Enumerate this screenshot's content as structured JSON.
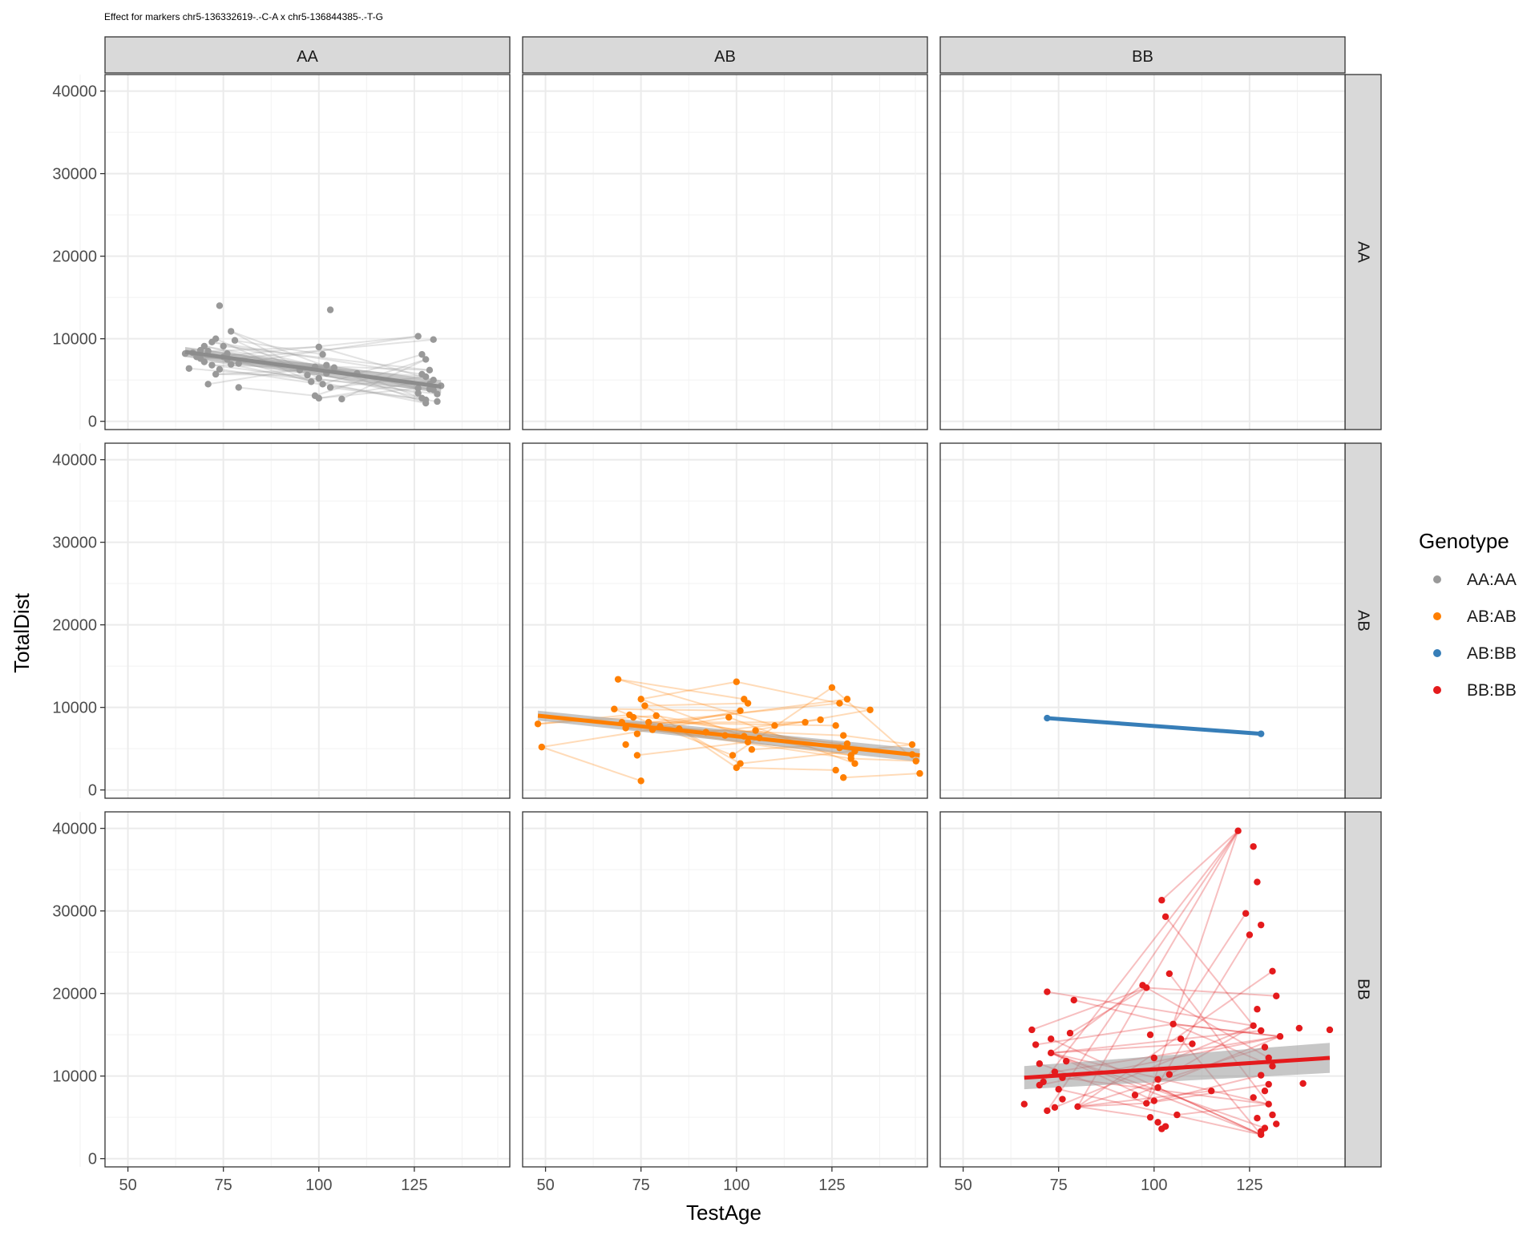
{
  "title": "Effect for markers chr5-136332619-.-C-A x chr5-136844385-.-T-G",
  "xlabel": "TestAge",
  "ylabel": "TotalDist",
  "legend": {
    "title": "Genotype",
    "items": [
      {
        "label": "AA:AA",
        "color": "#999999"
      },
      {
        "label": "AB:AB",
        "color": "#ff7f00"
      },
      {
        "label": "AB:BB",
        "color": "#377eb8"
      },
      {
        "label": "BB:BB",
        "color": "#e41a1c"
      }
    ]
  },
  "chart_data": {
    "type": "scatter",
    "facets": {
      "columns": [
        "AA",
        "AB",
        "BB"
      ],
      "rows": [
        "AA",
        "AB",
        "BB"
      ]
    },
    "x_ticks": [
      50,
      75,
      100,
      125
    ],
    "y_ticks": [
      0,
      10000,
      20000,
      30000,
      40000
    ],
    "xlim": [
      44,
      150
    ],
    "ylim": [
      -1000,
      42000
    ],
    "grid": true,
    "legend_position": "right",
    "series": [
      {
        "name": "AA:AA",
        "row": "AA",
        "col": "AA",
        "color": "#999999",
        "points": [
          [
            65,
            8200
          ],
          [
            67,
            8300
          ],
          [
            68,
            7800
          ],
          [
            69,
            8600
          ],
          [
            70,
            9100
          ],
          [
            71,
            8500
          ],
          [
            72,
            9600
          ],
          [
            73,
            10000
          ],
          [
            74,
            14000
          ],
          [
            75,
            9100
          ],
          [
            76,
            8200
          ],
          [
            77,
            10900
          ],
          [
            78,
            9800
          ],
          [
            70,
            7200
          ],
          [
            72,
            6800
          ],
          [
            74,
            6300
          ],
          [
            76,
            7500
          ],
          [
            79,
            7000
          ],
          [
            66,
            6400
          ],
          [
            71,
            4500
          ],
          [
            79,
            4100
          ],
          [
            73,
            5700
          ],
          [
            77,
            6900
          ],
          [
            69,
            7600
          ],
          [
            75,
            7800
          ],
          [
            100,
            9000
          ],
          [
            101,
            8100
          ],
          [
            102,
            6800
          ],
          [
            103,
            13500
          ],
          [
            100,
            5200
          ],
          [
            101,
            4500
          ],
          [
            99,
            3100
          ],
          [
            100,
            2800
          ],
          [
            102,
            5800
          ],
          [
            98,
            4800
          ],
          [
            104,
            6500
          ],
          [
            95,
            6200
          ],
          [
            106,
            2700
          ],
          [
            97,
            5600
          ],
          [
            103,
            4100
          ],
          [
            99,
            6600
          ],
          [
            110,
            5800
          ],
          [
            128,
            5400
          ],
          [
            129,
            6200
          ],
          [
            130,
            9900
          ],
          [
            126,
            10300
          ],
          [
            127,
            8100
          ],
          [
            128,
            7500
          ],
          [
            129,
            4500
          ],
          [
            130,
            3800
          ],
          [
            131,
            3300
          ],
          [
            127,
            2800
          ],
          [
            128,
            2200
          ],
          [
            129,
            3900
          ],
          [
            130,
            5000
          ],
          [
            126,
            4000
          ],
          [
            128,
            2600
          ],
          [
            131,
            2400
          ],
          [
            132,
            4300
          ],
          [
            126,
            3400
          ],
          [
            127,
            5700
          ]
        ],
        "trend": [
          [
            65,
            8400
          ],
          [
            132,
            4200
          ]
        ]
      },
      {
        "name": "AB:AB",
        "row": "AB",
        "col": "AB",
        "color": "#ff7f00",
        "points": [
          [
            48,
            8000
          ],
          [
            49,
            5200
          ],
          [
            68,
            9800
          ],
          [
            69,
            13400
          ],
          [
            70,
            8200
          ],
          [
            71,
            7500
          ],
          [
            72,
            9100
          ],
          [
            73,
            8800
          ],
          [
            74,
            6800
          ],
          [
            75,
            11000
          ],
          [
            76,
            10200
          ],
          [
            77,
            8200
          ],
          [
            78,
            7300
          ],
          [
            79,
            9000
          ],
          [
            75,
            1100
          ],
          [
            71,
            5500
          ],
          [
            74,
            4200
          ],
          [
            80,
            7700
          ],
          [
            85,
            7400
          ],
          [
            92,
            7000
          ],
          [
            98,
            8800
          ],
          [
            100,
            13100
          ],
          [
            101,
            9600
          ],
          [
            102,
            6500
          ],
          [
            103,
            5800
          ],
          [
            104,
            4900
          ],
          [
            105,
            7200
          ],
          [
            99,
            4200
          ],
          [
            100,
            2700
          ],
          [
            101,
            3200
          ],
          [
            102,
            11000
          ],
          [
            103,
            10500
          ],
          [
            106,
            6300
          ],
          [
            97,
            6600
          ],
          [
            110,
            7800
          ],
          [
            118,
            8200
          ],
          [
            122,
            8500
          ],
          [
            125,
            12400
          ],
          [
            126,
            7800
          ],
          [
            127,
            10500
          ],
          [
            128,
            6600
          ],
          [
            129,
            5600
          ],
          [
            130,
            4200
          ],
          [
            131,
            3200
          ],
          [
            126,
            2400
          ],
          [
            128,
            1500
          ],
          [
            129,
            11000
          ],
          [
            130,
            3800
          ],
          [
            127,
            5100
          ],
          [
            131,
            4700
          ],
          [
            135,
            9700
          ],
          [
            146,
            5500
          ],
          [
            147,
            3500
          ],
          [
            148,
            2000
          ],
          [
            146,
            4300
          ]
        ],
        "trend": [
          [
            48,
            9000
          ],
          [
            148,
            4200
          ]
        ]
      },
      {
        "name": "AB:BB",
        "row": "AB",
        "col": "BB",
        "color": "#377eb8",
        "points": [
          [
            72,
            8700
          ],
          [
            128,
            6800
          ]
        ],
        "trend": [
          [
            72,
            8700
          ],
          [
            128,
            6800
          ]
        ]
      },
      {
        "name": "BB:BB",
        "row": "BB",
        "col": "BB",
        "color": "#e41a1c",
        "points": [
          [
            66,
            6600
          ],
          [
            68,
            15600
          ],
          [
            69,
            13800
          ],
          [
            70,
            11500
          ],
          [
            71,
            9300
          ],
          [
            72,
            20200
          ],
          [
            73,
            12800
          ],
          [
            74,
            10500
          ],
          [
            75,
            8400
          ],
          [
            76,
            7200
          ],
          [
            77,
            11800
          ],
          [
            78,
            15200
          ],
          [
            79,
            19200
          ],
          [
            80,
            6300
          ],
          [
            72,
            5800
          ],
          [
            74,
            6200
          ],
          [
            76,
            9800
          ],
          [
            70,
            8900
          ],
          [
            73,
            14500
          ],
          [
            97,
            21000
          ],
          [
            98,
            20700
          ],
          [
            99,
            15000
          ],
          [
            100,
            12200
          ],
          [
            101,
            9600
          ],
          [
            102,
            31300
          ],
          [
            103,
            29300
          ],
          [
            104,
            22400
          ],
          [
            105,
            16300
          ],
          [
            101,
            8600
          ],
          [
            100,
            7000
          ],
          [
            99,
            5000
          ],
          [
            102,
            3600
          ],
          [
            101,
            4400
          ],
          [
            103,
            3900
          ],
          [
            98,
            6700
          ],
          [
            104,
            10200
          ],
          [
            106,
            5300
          ],
          [
            95,
            7700
          ],
          [
            107,
            14500
          ],
          [
            110,
            13900
          ],
          [
            115,
            8200
          ],
          [
            122,
            39700
          ],
          [
            124,
            29700
          ],
          [
            125,
            27100
          ],
          [
            126,
            37800
          ],
          [
            127,
            33500
          ],
          [
            128,
            28300
          ],
          [
            127,
            18100
          ],
          [
            126,
            16100
          ],
          [
            128,
            15500
          ],
          [
            129,
            13500
          ],
          [
            130,
            12200
          ],
          [
            131,
            11200
          ],
          [
            128,
            10100
          ],
          [
            129,
            8200
          ],
          [
            130,
            6600
          ],
          [
            131,
            5300
          ],
          [
            127,
            4900
          ],
          [
            128,
            3300
          ],
          [
            129,
            3700
          ],
          [
            131,
            22700
          ],
          [
            132,
            19700
          ],
          [
            133,
            14800
          ],
          [
            130,
            9000
          ],
          [
            126,
            7400
          ],
          [
            138,
            15800
          ],
          [
            139,
            9100
          ],
          [
            146,
            15600
          ],
          [
            132,
            4200
          ],
          [
            128,
            2900
          ]
        ],
        "trend": [
          [
            66,
            9800
          ],
          [
            146,
            12200
          ]
        ]
      }
    ]
  }
}
